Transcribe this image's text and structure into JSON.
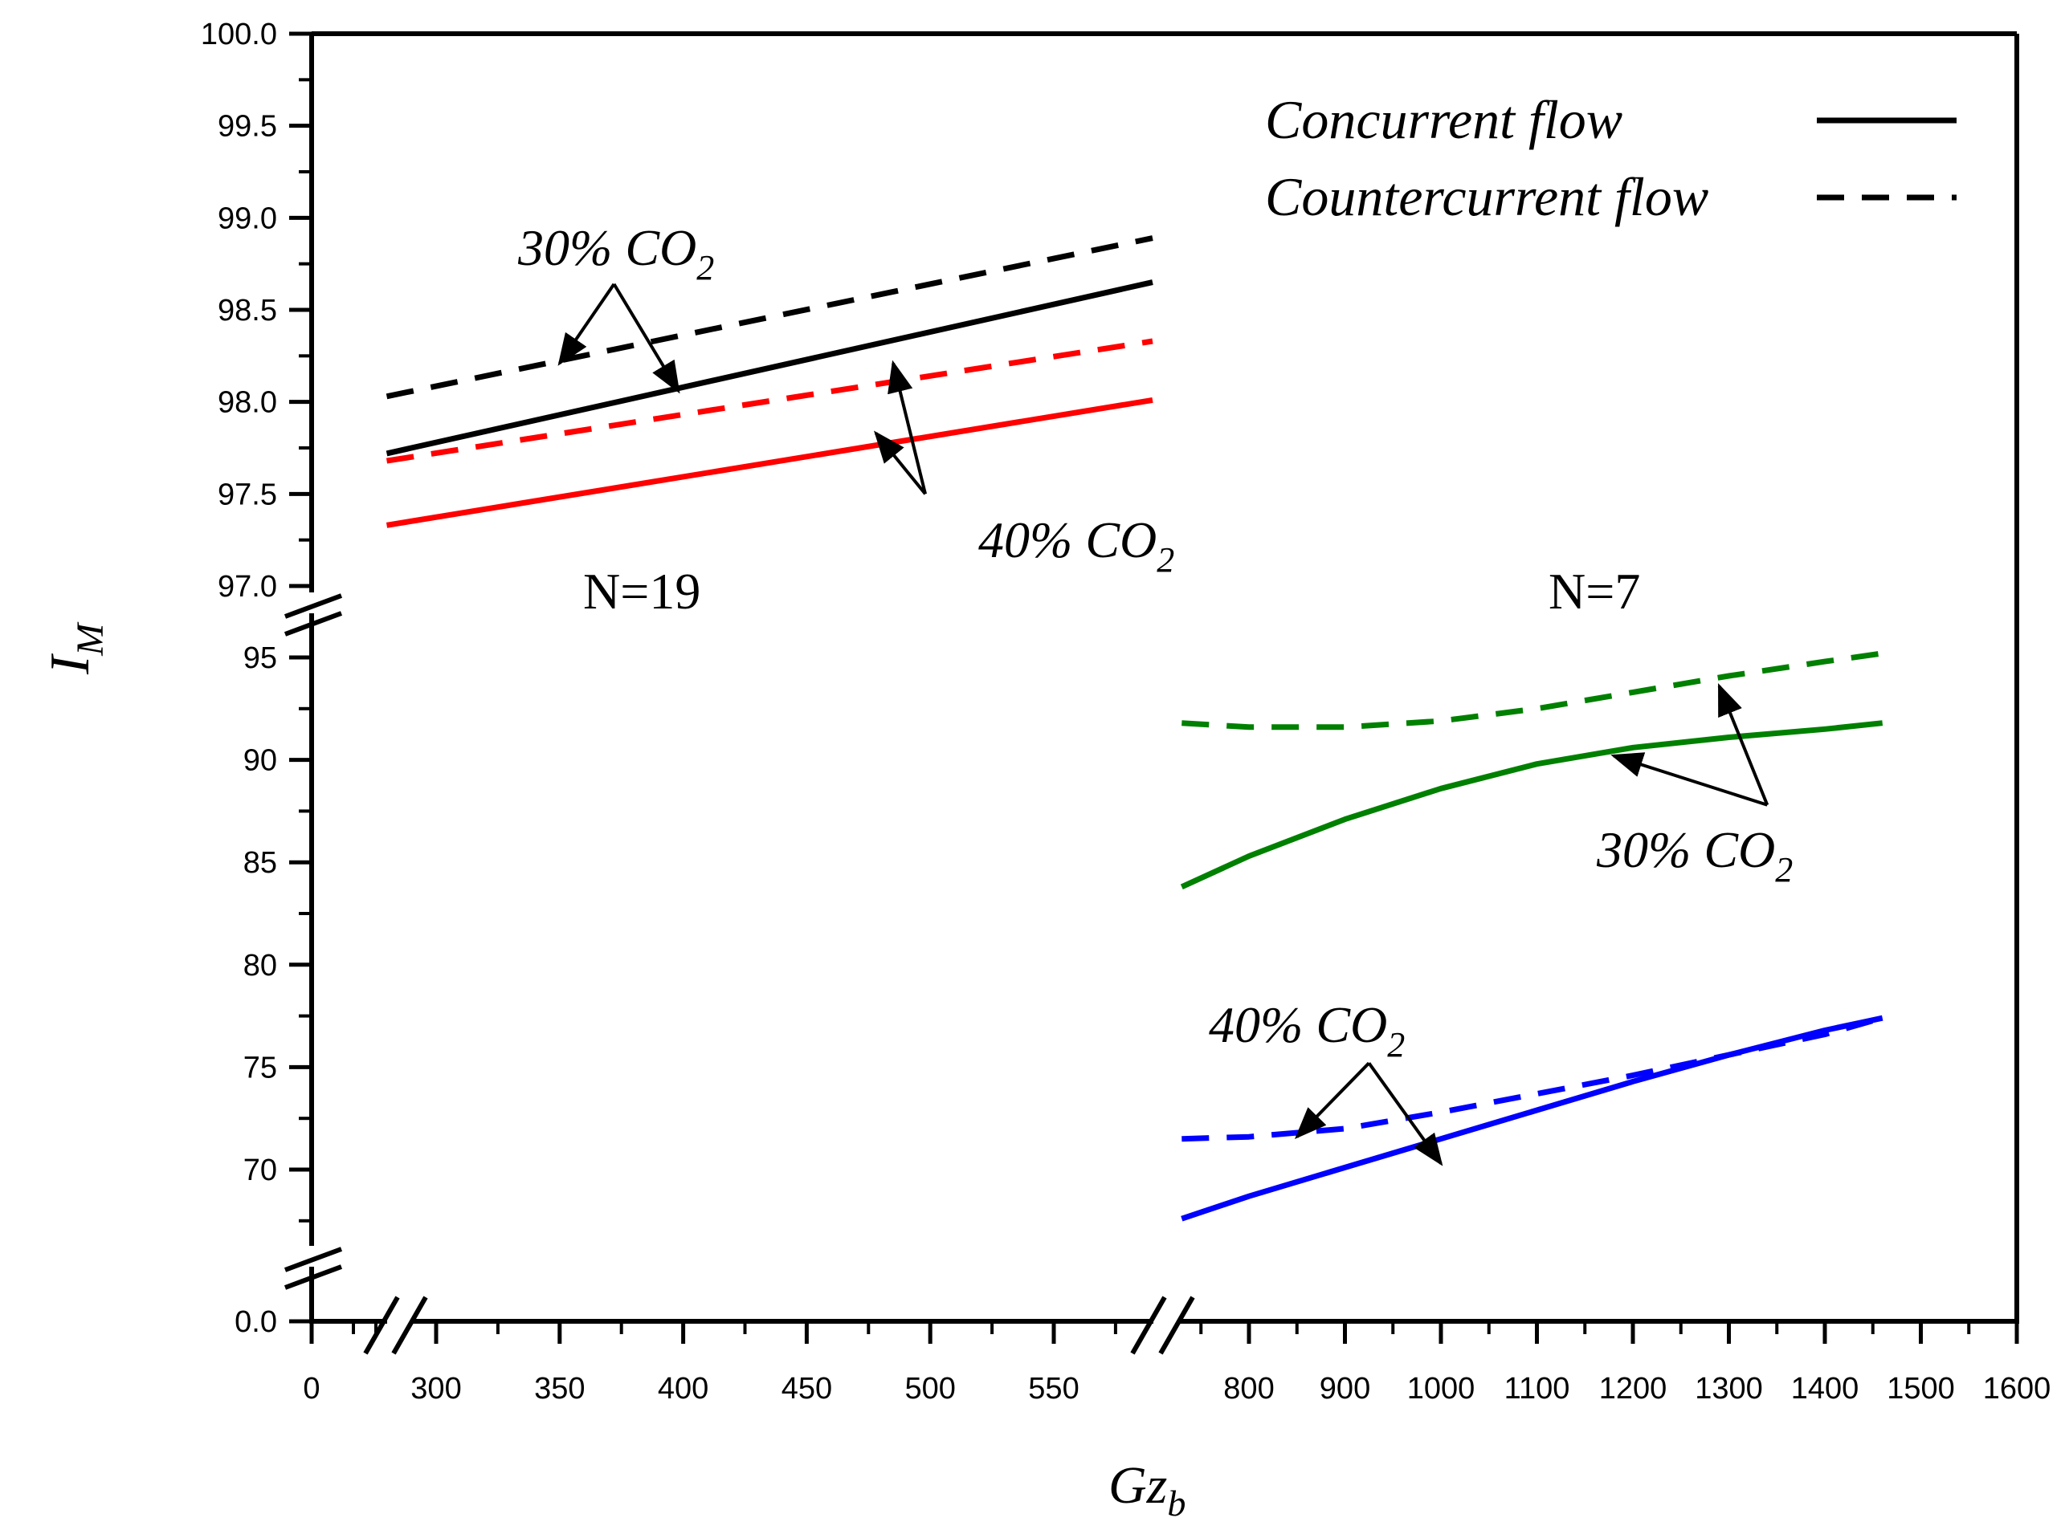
{
  "chart_data": {
    "type": "line",
    "title": "",
    "xlabel": "Gz",
    "xlabel_sub": "b",
    "ylabel": "I",
    "ylabel_sub": "M",
    "x_ticks": [
      "0",
      "300",
      "350",
      "400",
      "450",
      "500",
      "550",
      "800",
      "900",
      "1000",
      "1100",
      "1200",
      "1300",
      "1400",
      "1500",
      "1600"
    ],
    "y_ticks_upper": [
      "97.0",
      "97.5",
      "98.0",
      "98.5",
      "99.0",
      "99.5",
      "100.0"
    ],
    "y_ticks_lower": [
      "70",
      "75",
      "80",
      "85",
      "90",
      "95"
    ],
    "y_tick_bottom": "0.0",
    "x_segments": [
      [
        0,
        0
      ],
      [
        280,
        590
      ],
      [
        730,
        1600
      ]
    ],
    "y_segments": [
      [
        0,
        0
      ],
      [
        66,
        96
      ],
      [
        97,
        100
      ]
    ],
    "legend": {
      "position": "top-right",
      "entries": [
        {
          "label": "Concurrent flow",
          "style": "solid"
        },
        {
          "label": "Countercurrent flow",
          "style": "dashed"
        }
      ]
    },
    "panels": [
      {
        "label": "N=19"
      },
      {
        "label": "N=7"
      }
    ],
    "annotations": [
      {
        "text": "30% CO",
        "sub": "2"
      },
      {
        "text": "40% CO",
        "sub": "2"
      },
      {
        "text": "30% CO",
        "sub": "2"
      },
      {
        "text": "40% CO",
        "sub": "2"
      }
    ],
    "series": [
      {
        "name": "N=19 30% CO2 Countercurrent",
        "color": "#000000",
        "style": "dashed",
        "x": [
          280,
          590
        ],
        "y": [
          98.03,
          98.89
        ]
      },
      {
        "name": "N=19 30% CO2 Concurrent",
        "color": "#000000",
        "style": "solid",
        "x": [
          280,
          590
        ],
        "y": [
          97.72,
          98.65
        ]
      },
      {
        "name": "N=19 40% CO2 Countercurrent",
        "color": "#ff0000",
        "style": "dashed",
        "x": [
          280,
          590
        ],
        "y": [
          97.68,
          98.33
        ]
      },
      {
        "name": "N=19 40% CO2 Concurrent",
        "color": "#ff0000",
        "style": "solid",
        "x": [
          280,
          590
        ],
        "y": [
          97.33,
          98.01
        ]
      },
      {
        "name": "N=7 30% CO2 Countercurrent",
        "color": "#008000",
        "style": "dashed",
        "x": [
          730,
          800,
          900,
          1000,
          1100,
          1200,
          1300,
          1400,
          1460
        ],
        "y": [
          91.8,
          91.6,
          91.6,
          91.9,
          92.5,
          93.3,
          94.1,
          94.8,
          95.2
        ]
      },
      {
        "name": "N=7 30% CO2 Concurrent",
        "color": "#008000",
        "style": "solid",
        "x": [
          730,
          800,
          900,
          1000,
          1100,
          1200,
          1300,
          1400,
          1460
        ],
        "y": [
          83.8,
          85.3,
          87.1,
          88.6,
          89.8,
          90.6,
          91.1,
          91.5,
          91.8
        ]
      },
      {
        "name": "N=7 40% CO2 Countercurrent",
        "color": "#0000ff",
        "style": "dashed",
        "x": [
          730,
          800,
          900,
          1000,
          1100,
          1200,
          1300,
          1400,
          1460
        ],
        "y": [
          71.5,
          71.6,
          72.0,
          72.8,
          73.7,
          74.6,
          75.6,
          76.6,
          77.4
        ]
      },
      {
        "name": "N=7 40% CO2 Concurrent",
        "color": "#0000ff",
        "style": "solid",
        "x": [
          730,
          800,
          900,
          1000,
          1100,
          1200,
          1300,
          1400,
          1460
        ],
        "y": [
          67.6,
          68.7,
          70.1,
          71.5,
          72.9,
          74.3,
          75.6,
          76.8,
          77.4
        ]
      }
    ],
    "arrows": [
      {
        "from_x": 372,
        "from_y": 98.64,
        "to_x": 350,
        "to_y": 98.21
      },
      {
        "from_x": 372,
        "from_y": 98.64,
        "to_x": 398,
        "to_y": 98.06
      },
      {
        "from_x": 498,
        "from_y": 97.5,
        "to_x": 478,
        "to_y": 97.83
      },
      {
        "from_x": 498,
        "from_y": 97.5,
        "to_x": 485,
        "to_y": 98.21
      },
      {
        "from_x": 1340,
        "from_y": 87.8,
        "to_x": 1180,
        "to_y": 90.2
      },
      {
        "from_x": 1340,
        "from_y": 87.8,
        "to_x": 1290,
        "to_y": 93.6
      },
      {
        "from_x": 925,
        "from_y": 75.2,
        "to_x": 850,
        "to_y": 71.6
      },
      {
        "from_x": 925,
        "from_y": 75.2,
        "to_x": 1000,
        "to_y": 70.3
      }
    ]
  }
}
